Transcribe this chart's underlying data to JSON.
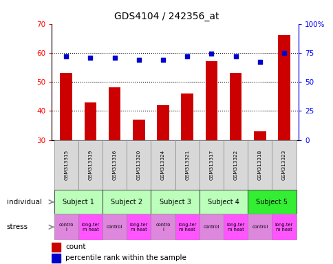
{
  "title": "GDS4104 / 242356_at",
  "samples": [
    "GSM313315",
    "GSM313319",
    "GSM313316",
    "GSM313320",
    "GSM313324",
    "GSM313321",
    "GSM313317",
    "GSM313322",
    "GSM313318",
    "GSM313323"
  ],
  "counts": [
    53,
    43,
    48,
    37,
    42,
    46,
    57,
    53,
    33,
    66
  ],
  "percentiles": [
    72,
    71,
    71,
    69,
    69,
    72,
    74,
    72,
    67,
    75
  ],
  "ylim_left": [
    30,
    70
  ],
  "ylim_right": [
    0,
    100
  ],
  "yticks_left": [
    30,
    40,
    50,
    60,
    70
  ],
  "yticks_right": [
    0,
    25,
    50,
    75,
    100
  ],
  "ytick_right_labels": [
    "0",
    "25",
    "50",
    "75",
    "100%"
  ],
  "bar_color": "#cc0000",
  "dot_color": "#0000cc",
  "subjects": [
    "Subject 1",
    "Subject 2",
    "Subject 3",
    "Subject 4",
    "Subject 5"
  ],
  "subject_colors": [
    "#bbffbb",
    "#bbffbb",
    "#bbffbb",
    "#bbffbb",
    "#33ee33"
  ],
  "stress_control_color": "#dd88dd",
  "stress_heat_color": "#ff55ff",
  "stress_labels": [
    "contro\nl",
    "long-ter\nm heat",
    "control",
    "long-ter\nm heat",
    "contro\nl",
    "long-ter\nm heat",
    "control",
    "long-ter\nm heat",
    "control",
    "long-ter\nm heat"
  ],
  "stress_is_heat": [
    false,
    true,
    false,
    true,
    false,
    true,
    false,
    true,
    false,
    true
  ],
  "bg_color": "#ffffff"
}
